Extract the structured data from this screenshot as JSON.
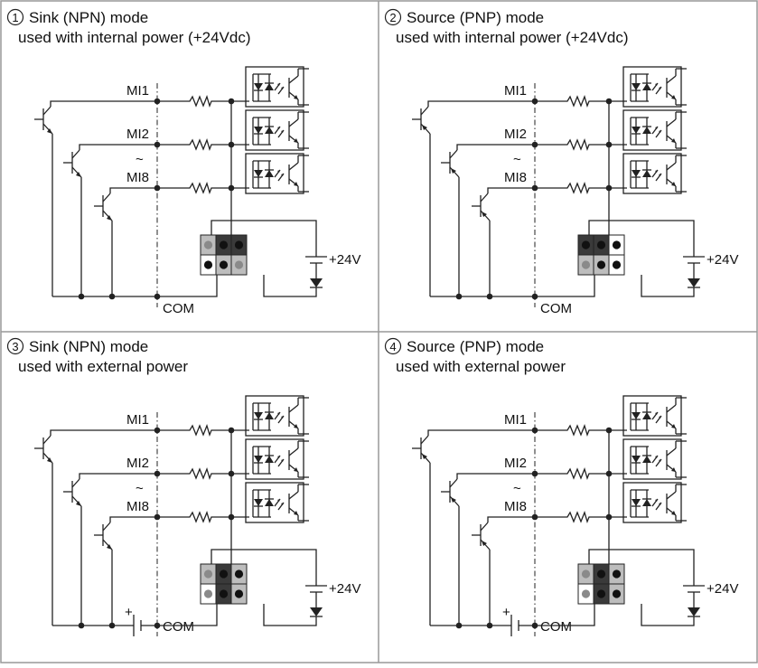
{
  "panels": [
    {
      "number": "1",
      "title_line1": "Sink (NPN) mode",
      "title_line2": "used with internal power (+24Vdc)",
      "mode": "sink",
      "power": "internal"
    },
    {
      "number": "2",
      "title_line1": "Source (PNP) mode",
      "title_line2": "used with internal power (+24Vdc)",
      "mode": "source",
      "power": "internal"
    },
    {
      "number": "3",
      "title_line1": "Sink (NPN) mode",
      "title_line2": "used with external power",
      "mode": "sink",
      "power": "external"
    },
    {
      "number": "4",
      "title_line1": "Source (PNP) mode",
      "title_line2": "used with external power",
      "mode": "source",
      "power": "external"
    }
  ],
  "labels": {
    "mi1": "MI1",
    "mi2": "MI2",
    "tilde": "~",
    "mi8": "MI8",
    "com": "COM",
    "v24": "+24V",
    "plus": "+"
  },
  "colors": {
    "line": "#222222",
    "border": "#999999",
    "jumper_dark": "#3a3a3a",
    "jumper_light": "#bdbdbd",
    "jumper_white": "#ffffff",
    "pin_dark": "#111111",
    "pin_grey": "#8a8a8a"
  }
}
